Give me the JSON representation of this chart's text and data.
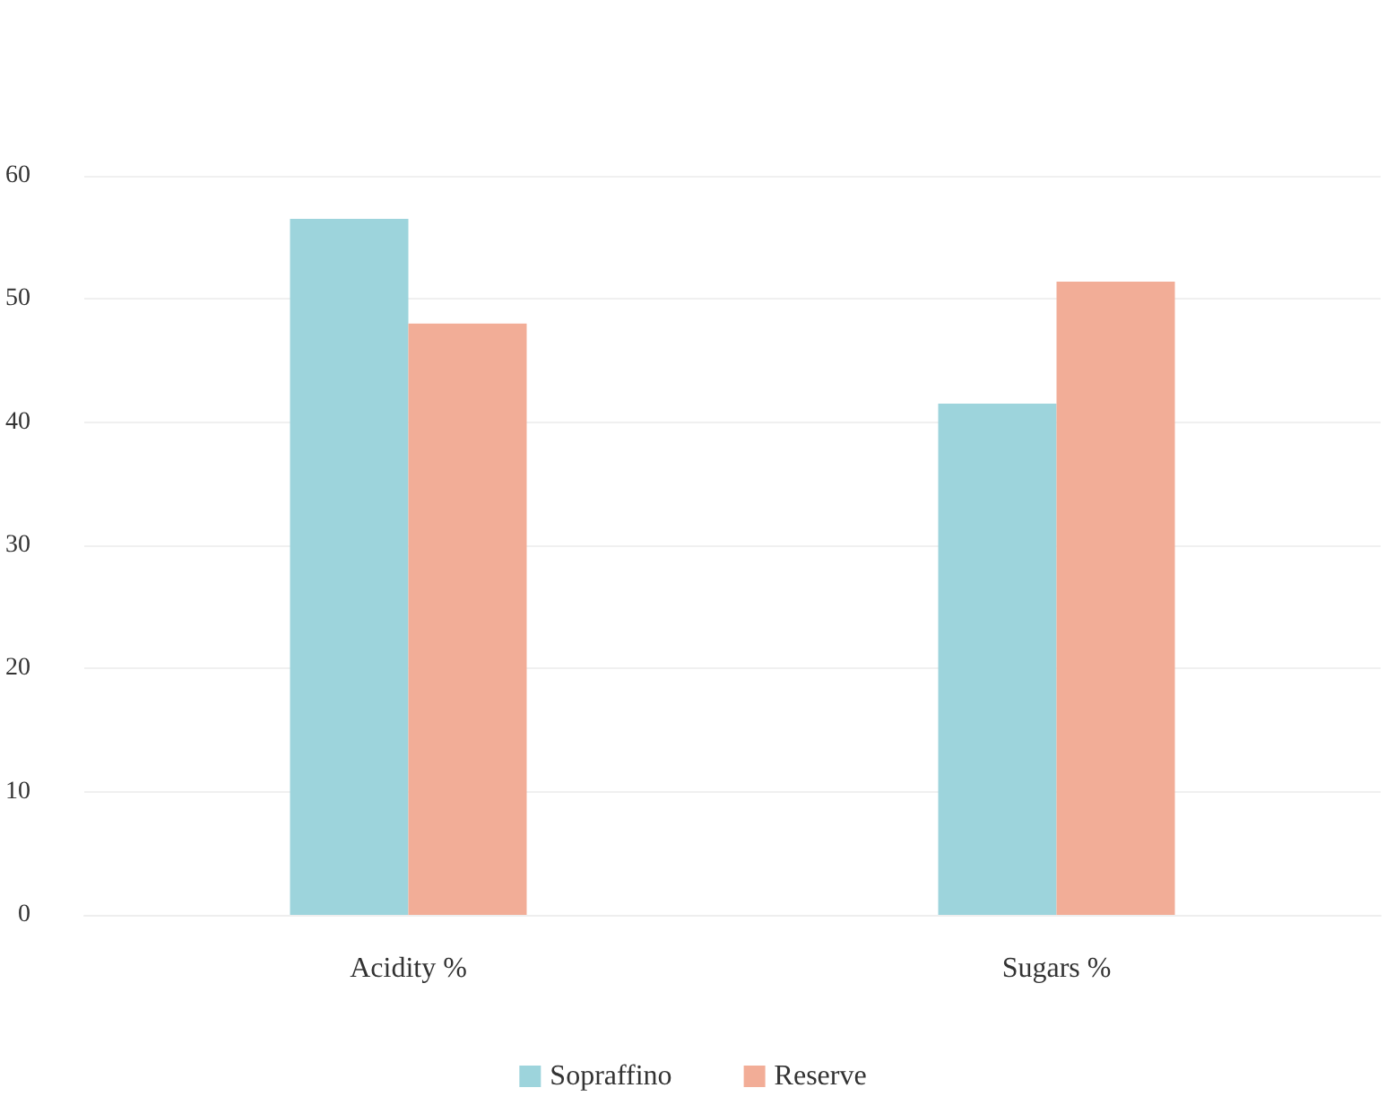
{
  "chart_data": {
    "type": "bar",
    "categories": [
      "Acidity %",
      "Sugars %"
    ],
    "series": [
      {
        "name": "Sopraffino",
        "color": "#9dd4dc",
        "values": [
          56.5,
          41.5
        ]
      },
      {
        "name": "Reserve",
        "color": "#f2ad97",
        "values": [
          48,
          51.4
        ]
      }
    ],
    "ylim": [
      0,
      60
    ],
    "yticks": [
      0,
      10,
      20,
      30,
      40,
      50,
      60
    ],
    "grid": "y",
    "legend": "bottom"
  }
}
